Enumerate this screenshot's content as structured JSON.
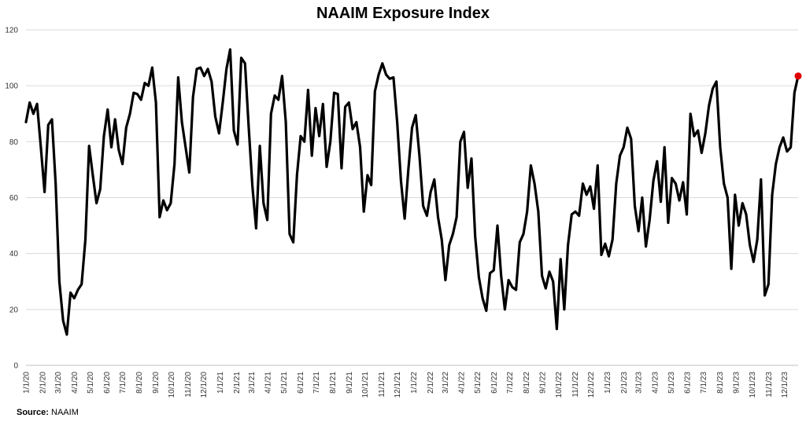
{
  "source": {
    "label": "Source:",
    "value": "NAAIM"
  },
  "chart_data": {
    "type": "line",
    "title": "NAAIM Exposure Index",
    "xlabel": "",
    "ylabel": "",
    "ylim": [
      0,
      120
    ],
    "yticks": [
      0,
      20,
      40,
      60,
      80,
      100,
      120
    ],
    "grid": true,
    "legend": "none",
    "xlim": [
      "2020-01-01",
      "2023-12-27"
    ],
    "x_tick_labels": [
      "1/1/20",
      "2/1/20",
      "3/1/20",
      "4/1/20",
      "5/1/20",
      "6/1/20",
      "7/1/20",
      "8/1/20",
      "9/1/20",
      "10/1/20",
      "11/1/20",
      "12/1/20",
      "1/1/21",
      "2/1/21",
      "3/1/21",
      "4/1/21",
      "5/1/21",
      "6/1/21",
      "7/1/21",
      "8/1/21",
      "9/1/21",
      "10/1/21",
      "11/1/21",
      "12/1/21",
      "1/1/22",
      "2/1/22",
      "3/1/22",
      "4/1/22",
      "5/1/22",
      "6/1/22",
      "7/1/22",
      "8/1/22",
      "9/1/22",
      "10/1/22",
      "11/1/22",
      "12/1/22",
      "1/1/23",
      "2/1/23",
      "3/1/23",
      "4/1/23",
      "5/1/23",
      "6/1/23",
      "7/1/23",
      "8/1/23",
      "9/1/23",
      "10/1/23",
      "11/1/23",
      "12/1/23"
    ],
    "series": [
      {
        "color": "#000000",
        "points": [
          [
            "2020-01-01",
            87
          ],
          [
            "2020-01-08",
            94
          ],
          [
            "2020-01-15",
            90
          ],
          [
            "2020-01-22",
            93.5
          ],
          [
            "2020-01-29",
            78
          ],
          [
            "2020-02-05",
            62
          ],
          [
            "2020-02-12",
            86
          ],
          [
            "2020-02-19",
            88
          ],
          [
            "2020-02-26",
            65
          ],
          [
            "2020-03-04",
            30
          ],
          [
            "2020-03-11",
            16
          ],
          [
            "2020-03-18",
            11
          ],
          [
            "2020-03-25",
            26
          ],
          [
            "2020-04-01",
            24
          ],
          [
            "2020-04-08",
            27
          ],
          [
            "2020-04-15",
            29
          ],
          [
            "2020-04-22",
            45
          ],
          [
            "2020-04-29",
            78.5
          ],
          [
            "2020-05-06",
            68
          ],
          [
            "2020-05-13",
            58
          ],
          [
            "2020-05-20",
            63
          ],
          [
            "2020-05-27",
            82
          ],
          [
            "2020-06-03",
            91.5
          ],
          [
            "2020-06-10",
            78
          ],
          [
            "2020-06-17",
            88
          ],
          [
            "2020-06-24",
            77
          ],
          [
            "2020-07-01",
            72
          ],
          [
            "2020-07-08",
            85
          ],
          [
            "2020-07-15",
            90
          ],
          [
            "2020-07-22",
            97.5
          ],
          [
            "2020-07-29",
            97
          ],
          [
            "2020-08-05",
            95
          ],
          [
            "2020-08-12",
            101
          ],
          [
            "2020-08-19",
            100
          ],
          [
            "2020-08-26",
            106.5
          ],
          [
            "2020-09-02",
            94
          ],
          [
            "2020-09-09",
            53
          ],
          [
            "2020-09-16",
            59
          ],
          [
            "2020-09-23",
            55.5
          ],
          [
            "2020-09-30",
            58
          ],
          [
            "2020-10-07",
            72
          ],
          [
            "2020-10-14",
            103
          ],
          [
            "2020-10-21",
            87
          ],
          [
            "2020-10-28",
            78
          ],
          [
            "2020-11-04",
            69
          ],
          [
            "2020-11-11",
            96
          ],
          [
            "2020-11-18",
            106
          ],
          [
            "2020-11-25",
            106.5
          ],
          [
            "2020-12-02",
            103.5
          ],
          [
            "2020-12-09",
            106
          ],
          [
            "2020-12-16",
            101.5
          ],
          [
            "2020-12-23",
            89
          ],
          [
            "2020-12-30",
            83
          ],
          [
            "2021-01-06",
            94
          ],
          [
            "2021-01-13",
            106
          ],
          [
            "2021-01-20",
            113
          ],
          [
            "2021-01-27",
            84
          ],
          [
            "2021-02-03",
            79
          ],
          [
            "2021-02-10",
            110
          ],
          [
            "2021-02-17",
            108
          ],
          [
            "2021-02-24",
            85
          ],
          [
            "2021-03-03",
            64
          ],
          [
            "2021-03-10",
            49
          ],
          [
            "2021-03-17",
            78.5
          ],
          [
            "2021-03-24",
            58
          ],
          [
            "2021-03-31",
            52
          ],
          [
            "2021-04-07",
            90
          ],
          [
            "2021-04-14",
            96.5
          ],
          [
            "2021-04-21",
            95
          ],
          [
            "2021-04-28",
            103.5
          ],
          [
            "2021-05-05",
            87
          ],
          [
            "2021-05-12",
            47
          ],
          [
            "2021-05-19",
            44
          ],
          [
            "2021-05-26",
            68
          ],
          [
            "2021-06-02",
            82
          ],
          [
            "2021-06-09",
            80
          ],
          [
            "2021-06-16",
            98.5
          ],
          [
            "2021-06-23",
            75
          ],
          [
            "2021-06-30",
            92
          ],
          [
            "2021-07-07",
            82
          ],
          [
            "2021-07-14",
            93.5
          ],
          [
            "2021-07-21",
            71
          ],
          [
            "2021-07-28",
            80
          ],
          [
            "2021-08-04",
            97.5
          ],
          [
            "2021-08-11",
            97
          ],
          [
            "2021-08-18",
            70.5
          ],
          [
            "2021-08-25",
            92.5
          ],
          [
            "2021-09-01",
            94
          ],
          [
            "2021-09-08",
            84.5
          ],
          [
            "2021-09-15",
            87
          ],
          [
            "2021-09-22",
            78
          ],
          [
            "2021-09-29",
            55
          ],
          [
            "2021-10-06",
            68
          ],
          [
            "2021-10-13",
            64.5
          ],
          [
            "2021-10-20",
            98
          ],
          [
            "2021-10-27",
            104
          ],
          [
            "2021-11-03",
            108
          ],
          [
            "2021-11-10",
            104
          ],
          [
            "2021-11-17",
            102.5
          ],
          [
            "2021-11-24",
            103
          ],
          [
            "2021-12-01",
            87
          ],
          [
            "2021-12-08",
            66
          ],
          [
            "2021-12-15",
            52.5
          ],
          [
            "2021-12-22",
            70
          ],
          [
            "2021-12-29",
            85
          ],
          [
            "2022-01-05",
            89.5
          ],
          [
            "2022-01-12",
            75
          ],
          [
            "2022-01-19",
            57
          ],
          [
            "2022-01-26",
            53.5
          ],
          [
            "2022-02-02",
            62
          ],
          [
            "2022-02-09",
            66.5
          ],
          [
            "2022-02-16",
            53
          ],
          [
            "2022-02-23",
            45
          ],
          [
            "2022-03-02",
            30.5
          ],
          [
            "2022-03-09",
            43
          ],
          [
            "2022-03-16",
            47
          ],
          [
            "2022-03-23",
            53
          ],
          [
            "2022-03-30",
            80
          ],
          [
            "2022-04-06",
            83.5
          ],
          [
            "2022-04-13",
            63.5
          ],
          [
            "2022-04-20",
            74
          ],
          [
            "2022-04-27",
            46
          ],
          [
            "2022-05-04",
            31.5
          ],
          [
            "2022-05-11",
            24
          ],
          [
            "2022-05-18",
            19.5
          ],
          [
            "2022-05-25",
            33
          ],
          [
            "2022-06-01",
            34
          ],
          [
            "2022-06-08",
            50
          ],
          [
            "2022-06-15",
            32
          ],
          [
            "2022-06-22",
            20
          ],
          [
            "2022-06-29",
            30.5
          ],
          [
            "2022-07-06",
            28
          ],
          [
            "2022-07-13",
            27
          ],
          [
            "2022-07-20",
            44
          ],
          [
            "2022-07-27",
            47
          ],
          [
            "2022-08-03",
            55
          ],
          [
            "2022-08-10",
            71.5
          ],
          [
            "2022-08-17",
            65
          ],
          [
            "2022-08-24",
            55
          ],
          [
            "2022-08-31",
            32
          ],
          [
            "2022-09-07",
            27.5
          ],
          [
            "2022-09-14",
            33.5
          ],
          [
            "2022-09-21",
            30
          ],
          [
            "2022-09-28",
            13
          ],
          [
            "2022-10-05",
            38
          ],
          [
            "2022-10-12",
            20
          ],
          [
            "2022-10-19",
            43
          ],
          [
            "2022-10-26",
            54
          ],
          [
            "2022-11-02",
            55
          ],
          [
            "2022-11-09",
            53.5
          ],
          [
            "2022-11-16",
            65
          ],
          [
            "2022-11-23",
            61
          ],
          [
            "2022-11-30",
            64
          ],
          [
            "2022-12-07",
            56
          ],
          [
            "2022-12-14",
            71.5
          ],
          [
            "2022-12-21",
            39.5
          ],
          [
            "2022-12-28",
            43.5
          ],
          [
            "2023-01-04",
            39
          ],
          [
            "2023-01-11",
            45
          ],
          [
            "2023-01-18",
            65
          ],
          [
            "2023-01-25",
            75
          ],
          [
            "2023-02-01",
            78
          ],
          [
            "2023-02-08",
            85
          ],
          [
            "2023-02-15",
            81
          ],
          [
            "2023-02-22",
            57
          ],
          [
            "2023-03-01",
            48
          ],
          [
            "2023-03-08",
            60
          ],
          [
            "2023-03-15",
            42.5
          ],
          [
            "2023-03-22",
            52
          ],
          [
            "2023-03-29",
            66
          ],
          [
            "2023-04-05",
            73
          ],
          [
            "2023-04-12",
            58.5
          ],
          [
            "2023-04-19",
            78
          ],
          [
            "2023-04-26",
            51
          ],
          [
            "2023-05-03",
            67
          ],
          [
            "2023-05-10",
            65
          ],
          [
            "2023-05-17",
            59
          ],
          [
            "2023-05-24",
            65.5
          ],
          [
            "2023-05-31",
            54
          ],
          [
            "2023-06-07",
            90
          ],
          [
            "2023-06-14",
            82
          ],
          [
            "2023-06-21",
            84
          ],
          [
            "2023-06-28",
            76
          ],
          [
            "2023-07-05",
            83
          ],
          [
            "2023-07-12",
            93
          ],
          [
            "2023-07-19",
            99
          ],
          [
            "2023-07-26",
            101.5
          ],
          [
            "2023-08-02",
            78
          ],
          [
            "2023-08-09",
            65
          ],
          [
            "2023-08-16",
            60
          ],
          [
            "2023-08-23",
            34.5
          ],
          [
            "2023-08-30",
            61
          ],
          [
            "2023-09-06",
            50
          ],
          [
            "2023-09-13",
            58
          ],
          [
            "2023-09-20",
            54
          ],
          [
            "2023-09-27",
            43
          ],
          [
            "2023-10-04",
            37
          ],
          [
            "2023-10-11",
            45
          ],
          [
            "2023-10-18",
            66.5
          ],
          [
            "2023-10-25",
            25
          ],
          [
            "2023-11-01",
            29
          ],
          [
            "2023-11-08",
            61
          ],
          [
            "2023-11-15",
            72
          ],
          [
            "2023-11-22",
            78
          ],
          [
            "2023-11-29",
            81.5
          ],
          [
            "2023-12-06",
            76.5
          ],
          [
            "2023-12-13",
            78
          ],
          [
            "2023-12-20",
            97.5
          ],
          [
            "2023-12-27",
            103.5
          ]
        ]
      }
    ],
    "highlight": {
      "x": "2023-12-27",
      "y": 103.5,
      "color": "#e00000"
    }
  }
}
